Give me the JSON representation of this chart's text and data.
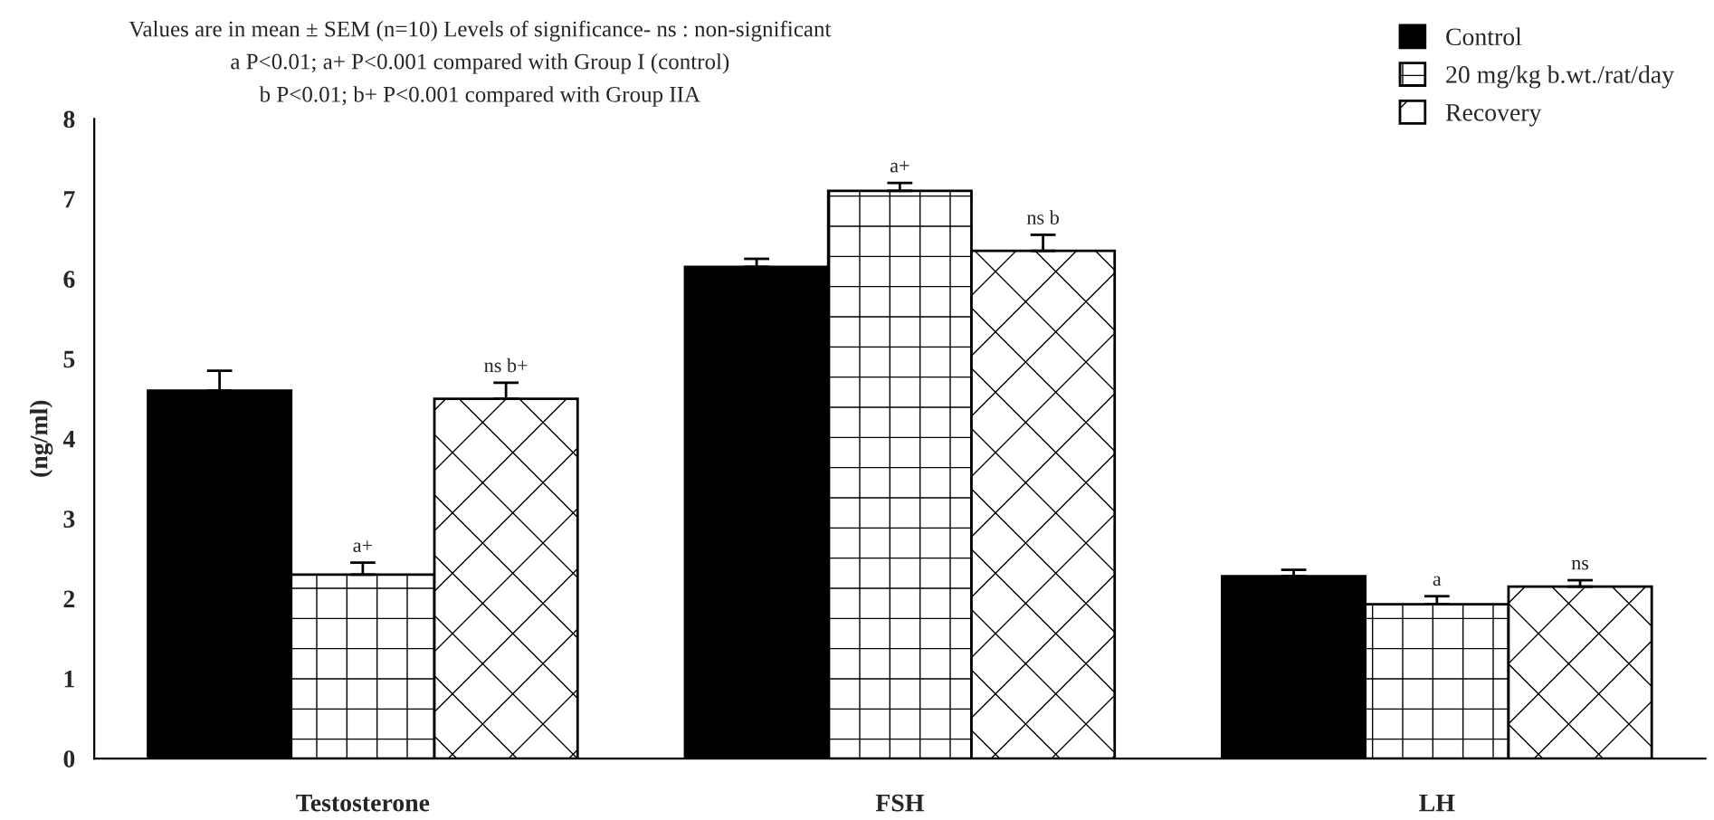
{
  "chart_data": {
    "type": "bar",
    "categories": [
      "Testosterone",
      "FSH",
      "LH"
    ],
    "ylabel": "(ng/ml)",
    "ylim": [
      0,
      8
    ],
    "yticks": [
      0,
      1,
      2,
      3,
      4,
      5,
      6,
      7,
      8
    ],
    "grid": false,
    "legend": "top right",
    "annotations": [
      "Values are in mean ± SEM (n=10) Levels of significance- ns : non-significant",
      "a P<0.01; a+ P<0.001 compared with Group I (control)",
      "b P<0.01; b+ P<0.001 compared with Group IIA"
    ],
    "series": [
      {
        "name": "Control",
        "color": "#000000",
        "values": [
          4.6,
          6.15,
          2.28
        ],
        "errors": [
          0.25,
          0.1,
          0.08
        ],
        "value_labels": [
          null,
          null,
          null
        ]
      },
      {
        "name": "20 mg/kg b.wt./rat/day",
        "color": "#000000",
        "values": [
          2.3,
          7.1,
          1.93
        ],
        "errors": [
          0.15,
          0.1,
          0.1
        ],
        "value_labels": [
          "a+",
          "a+",
          "a"
        ]
      },
      {
        "name": "Recovery",
        "color": "#000000",
        "values": [
          4.5,
          6.35,
          2.15
        ],
        "errors": [
          0.2,
          0.2,
          0.08
        ],
        "value_labels": [
          "ns b+",
          "ns b",
          "ns"
        ]
      }
    ]
  }
}
